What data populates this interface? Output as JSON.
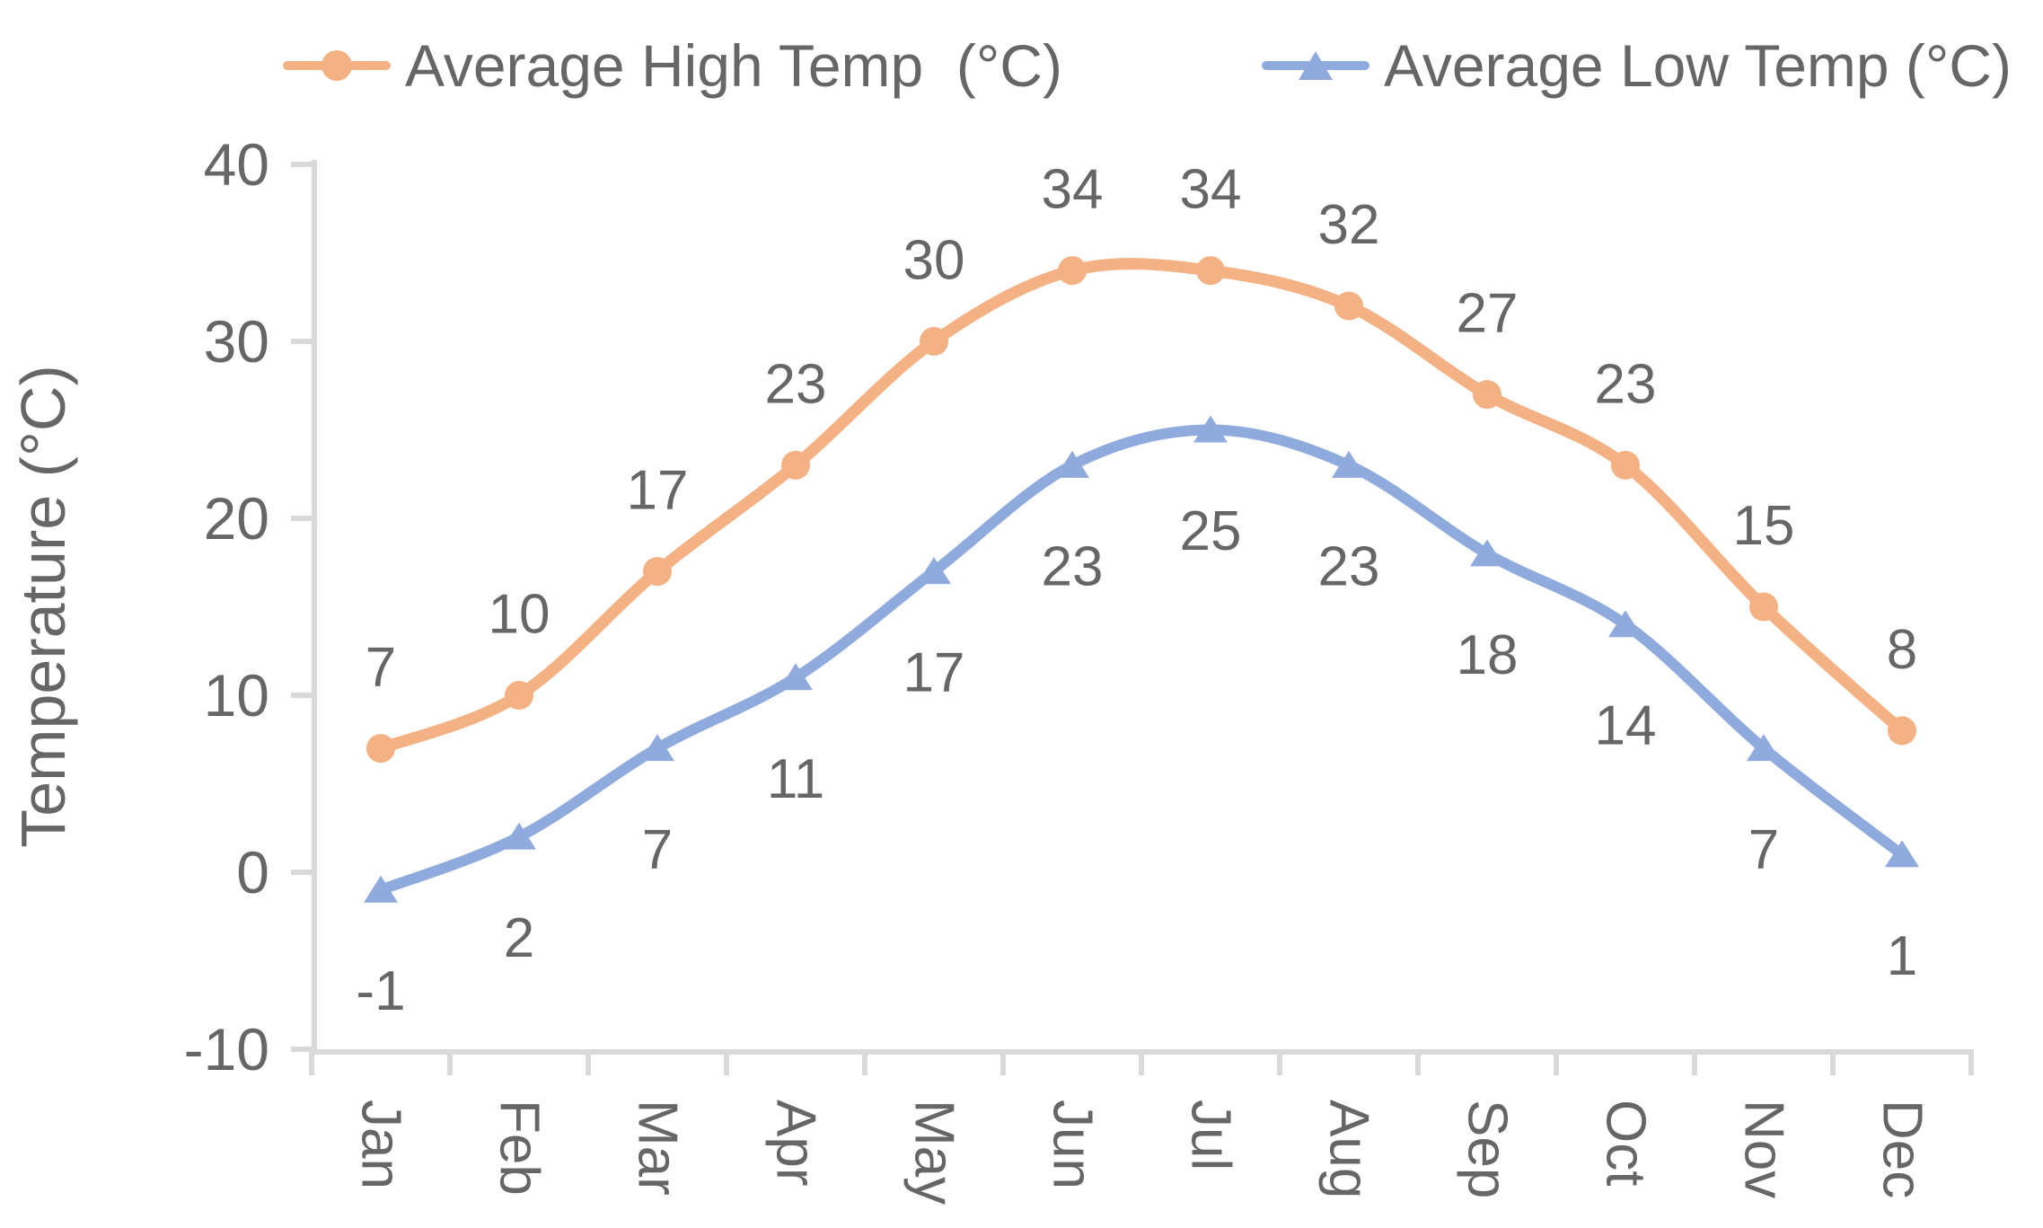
{
  "legend": {
    "items": [
      {
        "label": "Average High Temp  (°C)",
        "color": "#F4B183",
        "marker": "circle"
      },
      {
        "label": "Average Low Temp (°C)",
        "color": "#8FAADC",
        "marker": "triangle"
      }
    ]
  },
  "chart_data": {
    "type": "line",
    "title": "",
    "categories": [
      "Jan",
      "Feb",
      "Mar",
      "Apr",
      "May",
      "Jun",
      "Jul",
      "Aug",
      "Sep",
      "Oct",
      "Nov",
      "Dec"
    ],
    "series": [
      {
        "name": "Average High Temp  (°C)",
        "color": "#F4B183",
        "marker": "circle",
        "values": [
          7,
          10,
          17,
          23,
          30,
          34,
          34,
          32,
          27,
          23,
          15,
          8
        ],
        "label_position": "above"
      },
      {
        "name": "Average Low Temp (°C)",
        "color": "#8FAADC",
        "marker": "triangle",
        "values": [
          -1,
          2,
          7,
          11,
          17,
          23,
          25,
          23,
          18,
          14,
          7,
          1
        ],
        "label_position": "below"
      }
    ],
    "xlabel": "",
    "ylabel": "Temperature (°C)",
    "ylim": [
      -10,
      40
    ],
    "yticks": [
      40,
      30,
      20,
      10,
      0,
      -10
    ],
    "grid": false,
    "legend_position": "top",
    "smoothed": true,
    "data_labels": true
  },
  "style": {
    "axis_color": "#D9D9D9",
    "text_color": "#666666"
  }
}
